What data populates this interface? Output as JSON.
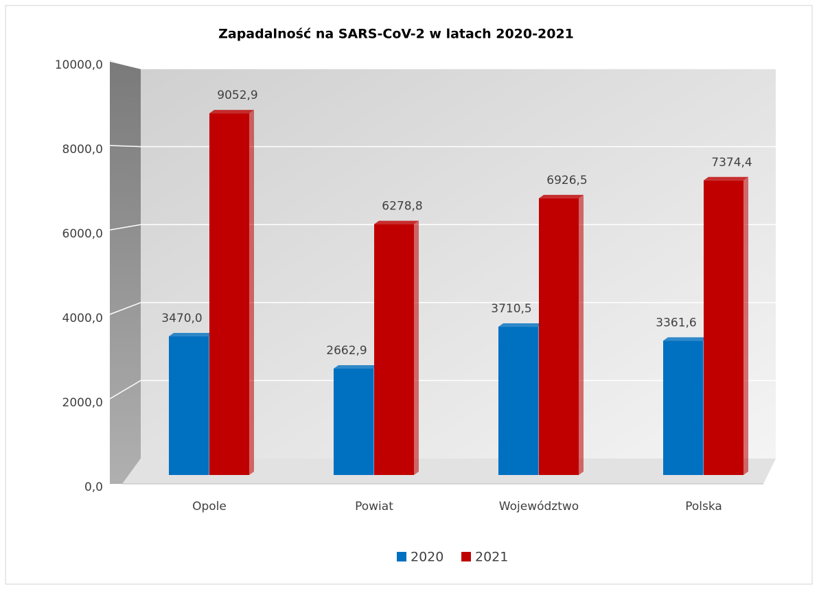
{
  "chart_data": {
    "type": "bar",
    "title": "Zapadalność na SARS-CoV-2 w latach 2020-2021",
    "categories": [
      "Opole",
      "Powiat",
      "Województwo",
      "Polska"
    ],
    "series": [
      {
        "name": "2020",
        "color": "#0070c0",
        "values": [
          3470.0,
          2662.9,
          3710.5,
          3361.6
        ],
        "value_labels": [
          "3470,0",
          "2662,9",
          "3710,5",
          "3361,6"
        ]
      },
      {
        "name": "2021",
        "color": "#c00000",
        "values": [
          9052.9,
          6278.8,
          6926.5,
          7374.4
        ],
        "value_labels": [
          "9052,9",
          "6278,8",
          "6926,5",
          "7374,4"
        ]
      }
    ],
    "ylim": [
      0,
      10000
    ],
    "yticks": [
      {
        "value": 0,
        "label": "0,0"
      },
      {
        "value": 2000,
        "label": "2000,0"
      },
      {
        "value": 4000,
        "label": "4000,0"
      },
      {
        "value": 6000,
        "label": "6000,0"
      },
      {
        "value": 8000,
        "label": "8000,0"
      },
      {
        "value": 10000,
        "label": "10000,0"
      }
    ],
    "grid": true,
    "legend": "bottom"
  }
}
